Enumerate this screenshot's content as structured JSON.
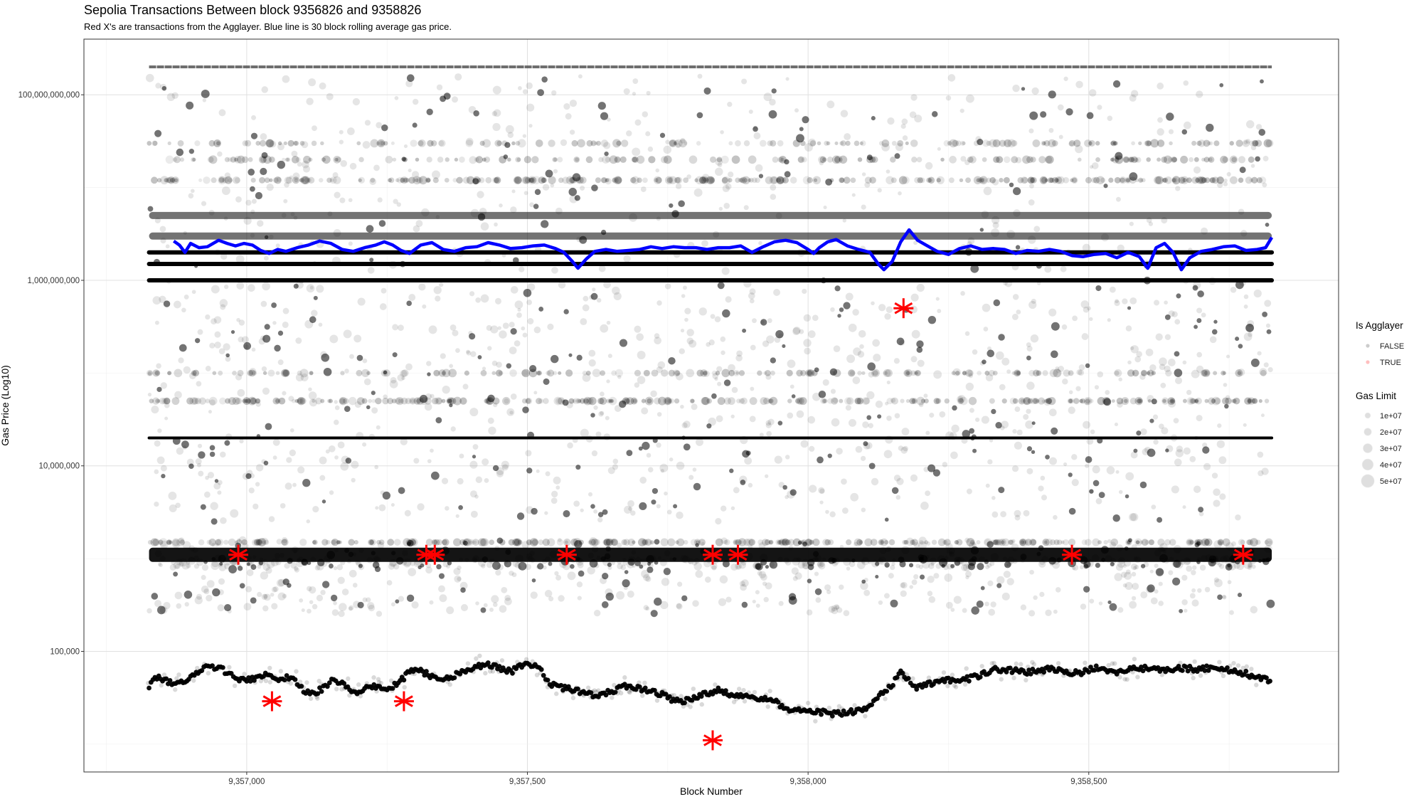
{
  "chart_data": {
    "type": "scatter",
    "title": "Sepolia Transactions Between block 9356826 and 9358826",
    "subtitle": "Red X's are transactions from the Agglayer. Blue line is 30 block rolling average gas price.",
    "xlabel": "Block Number",
    "ylabel": "Gas Price (Log10)",
    "xlim": [
      9356710,
      9358945
    ],
    "ylim_log10": [
      3.7,
      11.6
    ],
    "y_scale": "log10",
    "grid": true,
    "x_ticks": [
      {
        "value": 9357000,
        "label": "9,357,000"
      },
      {
        "value": 9357500,
        "label": "9,357,500"
      },
      {
        "value": 9358000,
        "label": "9,358,000"
      },
      {
        "value": 9358500,
        "label": "9,358,500"
      }
    ],
    "y_ticks": [
      {
        "value": 100000,
        "label": "100,000"
      },
      {
        "value": 10000000,
        "label": "10,000,000"
      },
      {
        "value": 1000000000,
        "label": "1,000,000,000"
      },
      {
        "value": 100000000000,
        "label": "100,000,000,000"
      }
    ],
    "legend_position": "right",
    "legend_agglayer": {
      "title": "Is Agglayer",
      "entries": [
        {
          "label": "FALSE",
          "color": "#000000"
        },
        {
          "label": "TRUE",
          "color": "#ff0000"
        }
      ]
    },
    "legend_gaslimit": {
      "title": "Gas Limit",
      "entries": [
        {
          "label": "1e+07",
          "value": 10000000
        },
        {
          "label": "2e+07",
          "value": 20000000
        },
        {
          "label": "3e+07",
          "value": 30000000
        },
        {
          "label": "4e+07",
          "value": 40000000
        },
        {
          "label": "5e+07",
          "value": 50000000
        }
      ]
    },
    "block_range": [
      9356826,
      9358826
    ],
    "horizontal_bands": [
      {
        "gas_price": 200000000000,
        "density": "medium",
        "kind": "dashed"
      },
      {
        "gas_price": 30000000000,
        "density": "sparse",
        "kind": "dotted"
      },
      {
        "gas_price": 20000000000,
        "density": "sparse",
        "kind": "dotted"
      },
      {
        "gas_price": 12000000000,
        "density": "medium",
        "kind": "dotted"
      },
      {
        "gas_price": 5000000000,
        "density": "high",
        "kind": "band"
      },
      {
        "gas_price": 3000000000,
        "density": "high",
        "kind": "band"
      },
      {
        "gas_price": 2000000000,
        "density": "high",
        "kind": "line"
      },
      {
        "gas_price": 1500000000,
        "density": "high",
        "kind": "line"
      },
      {
        "gas_price": 1000000000,
        "density": "high",
        "kind": "line"
      },
      {
        "gas_price": 100000000,
        "density": "sparse",
        "kind": "dotted"
      },
      {
        "gas_price": 50000000,
        "density": "medium",
        "kind": "dotted"
      },
      {
        "gas_price": 20000000,
        "density": "high",
        "kind": "line"
      },
      {
        "gas_price": 1500000,
        "density": "medium",
        "kind": "dotted"
      },
      {
        "gas_price": 1100000,
        "density": "very-high",
        "kind": "band"
      }
    ],
    "base_fee_curve": [
      [
        9356826,
        42000
      ],
      [
        9356840,
        52000
      ],
      [
        9356860,
        47000
      ],
      [
        9356880,
        44000
      ],
      [
        9356900,
        52000
      ],
      [
        9356920,
        62000
      ],
      [
        9356935,
        70000
      ],
      [
        9356950,
        66000
      ],
      [
        9356965,
        60000
      ],
      [
        9356980,
        50000
      ],
      [
        9357000,
        48000
      ],
      [
        9357020,
        54000
      ],
      [
        9357040,
        55000
      ],
      [
        9357060,
        50000
      ],
      [
        9357075,
        53000
      ],
      [
        9357090,
        45000
      ],
      [
        9357105,
        37000
      ],
      [
        9357120,
        35000
      ],
      [
        9357140,
        42000
      ],
      [
        9357155,
        49000
      ],
      [
        9357170,
        46000
      ],
      [
        9357190,
        35000
      ],
      [
        9357210,
        40000
      ],
      [
        9357230,
        42000
      ],
      [
        9357250,
        39000
      ],
      [
        9357270,
        45000
      ],
      [
        9357290,
        60000
      ],
      [
        9357310,
        63000
      ],
      [
        9357330,
        52000
      ],
      [
        9357350,
        49000
      ],
      [
        9357370,
        55000
      ],
      [
        9357390,
        62000
      ],
      [
        9357410,
        68000
      ],
      [
        9357430,
        72000
      ],
      [
        9357450,
        66000
      ],
      [
        9357470,
        60000
      ],
      [
        9357490,
        70000
      ],
      [
        9357510,
        73000
      ],
      [
        9357525,
        60000
      ],
      [
        9357540,
        44000
      ],
      [
        9357560,
        41000
      ],
      [
        9357580,
        38000
      ],
      [
        9357600,
        37000
      ],
      [
        9357620,
        33000
      ],
      [
        9357640,
        35000
      ],
      [
        9357660,
        39000
      ],
      [
        9357680,
        43000
      ],
      [
        9357700,
        40000
      ],
      [
        9357720,
        38000
      ],
      [
        9357740,
        34000
      ],
      [
        9357760,
        30000
      ],
      [
        9357780,
        29000
      ],
      [
        9357800,
        32000
      ],
      [
        9357820,
        35000
      ],
      [
        9357840,
        38000
      ],
      [
        9357860,
        35000
      ],
      [
        9357880,
        33000
      ],
      [
        9357900,
        33000
      ],
      [
        9357920,
        31000
      ],
      [
        9357940,
        29000
      ],
      [
        9357960,
        23000
      ],
      [
        9357980,
        23500
      ],
      [
        9358000,
        22000
      ],
      [
        9358020,
        22500
      ],
      [
        9358040,
        21000
      ],
      [
        9358060,
        21500
      ],
      [
        9358080,
        22500
      ],
      [
        9358100,
        24000
      ],
      [
        9358120,
        30000
      ],
      [
        9358140,
        38000
      ],
      [
        9358155,
        48000
      ],
      [
        9358165,
        58000
      ],
      [
        9358175,
        52000
      ],
      [
        9358190,
        40000
      ],
      [
        9358210,
        44000
      ],
      [
        9358230,
        46000
      ],
      [
        9358250,
        50000
      ],
      [
        9358270,
        47000
      ],
      [
        9358290,
        52000
      ],
      [
        9358310,
        56000
      ],
      [
        9358330,
        63000
      ],
      [
        9358350,
        64000
      ],
      [
        9358370,
        62000
      ],
      [
        9358390,
        60000
      ],
      [
        9358410,
        62000
      ],
      [
        9358430,
        65000
      ],
      [
        9358450,
        62000
      ],
      [
        9358470,
        58000
      ],
      [
        9358490,
        60000
      ],
      [
        9358510,
        66000
      ],
      [
        9358530,
        62000
      ],
      [
        9358550,
        60000
      ],
      [
        9358570,
        65000
      ],
      [
        9358590,
        66000
      ],
      [
        9358610,
        64000
      ],
      [
        9358630,
        63000
      ],
      [
        9358650,
        65000
      ],
      [
        9358670,
        66000
      ],
      [
        9358690,
        64000
      ],
      [
        9358710,
        66000
      ],
      [
        9358730,
        65000
      ],
      [
        9358750,
        63000
      ],
      [
        9358770,
        60000
      ],
      [
        9358790,
        55000
      ],
      [
        9358810,
        50000
      ],
      [
        9358826,
        49000
      ]
    ],
    "rolling_avg_gas_price": [
      [
        9356870,
        2650000000
      ],
      [
        9356880,
        2400000000
      ],
      [
        9356890,
        2000000000
      ],
      [
        9356900,
        2500000000
      ],
      [
        9356915,
        2250000000
      ],
      [
        9356930,
        2300000000
      ],
      [
        9356950,
        2700000000
      ],
      [
        9356965,
        2500000000
      ],
      [
        9356980,
        2350000000
      ],
      [
        9356995,
        2500000000
      ],
      [
        9357010,
        2400000000
      ],
      [
        9357025,
        2100000000
      ],
      [
        9357040,
        1950000000
      ],
      [
        9357055,
        2150000000
      ],
      [
        9357070,
        2050000000
      ],
      [
        9357090,
        2250000000
      ],
      [
        9357110,
        2400000000
      ],
      [
        9357130,
        2650000000
      ],
      [
        9357150,
        2500000000
      ],
      [
        9357170,
        2150000000
      ],
      [
        9357190,
        2050000000
      ],
      [
        9357210,
        2250000000
      ],
      [
        9357230,
        2400000000
      ],
      [
        9357245,
        2600000000
      ],
      [
        9357260,
        2400000000
      ],
      [
        9357275,
        2100000000
      ],
      [
        9357290,
        1950000000
      ],
      [
        9357310,
        2400000000
      ],
      [
        9357330,
        2550000000
      ],
      [
        9357350,
        2150000000
      ],
      [
        9357370,
        2050000000
      ],
      [
        9357390,
        2250000000
      ],
      [
        9357410,
        2300000000
      ],
      [
        9357430,
        2550000000
      ],
      [
        9357450,
        2400000000
      ],
      [
        9357470,
        2200000000
      ],
      [
        9357490,
        2250000000
      ],
      [
        9357510,
        2350000000
      ],
      [
        9357530,
        2400000000
      ],
      [
        9357550,
        2200000000
      ],
      [
        9357565,
        2000000000
      ],
      [
        9357580,
        1600000000
      ],
      [
        9357590,
        1350000000
      ],
      [
        9357605,
        1700000000
      ],
      [
        9357620,
        2050000000
      ],
      [
        9357640,
        2150000000
      ],
      [
        9357660,
        2050000000
      ],
      [
        9357680,
        2100000000
      ],
      [
        9357700,
        2150000000
      ],
      [
        9357720,
        2300000000
      ],
      [
        9357740,
        2200000000
      ],
      [
        9357760,
        2300000000
      ],
      [
        9357780,
        2250000000
      ],
      [
        9357800,
        2250000000
      ],
      [
        9357820,
        2150000000
      ],
      [
        9357840,
        2250000000
      ],
      [
        9357860,
        2250000000
      ],
      [
        9357880,
        2350000000
      ],
      [
        9357900,
        2000000000
      ],
      [
        9357920,
        2300000000
      ],
      [
        9357940,
        2600000000
      ],
      [
        9357960,
        2700000000
      ],
      [
        9357980,
        2550000000
      ],
      [
        9358000,
        2150000000
      ],
      [
        9358010,
        1950000000
      ],
      [
        9358020,
        2250000000
      ],
      [
        9358035,
        2600000000
      ],
      [
        9358050,
        2750000000
      ],
      [
        9358070,
        2350000000
      ],
      [
        9358090,
        2150000000
      ],
      [
        9358110,
        2000000000
      ],
      [
        9358125,
        1500000000
      ],
      [
        9358135,
        1300000000
      ],
      [
        9358150,
        1600000000
      ],
      [
        9358165,
        2600000000
      ],
      [
        9358180,
        3500000000
      ],
      [
        9358195,
        2700000000
      ],
      [
        9358210,
        2400000000
      ],
      [
        9358230,
        2050000000
      ],
      [
        9358250,
        1900000000
      ],
      [
        9358270,
        2200000000
      ],
      [
        9358290,
        2350000000
      ],
      [
        9358310,
        2150000000
      ],
      [
        9358330,
        2200000000
      ],
      [
        9358350,
        2150000000
      ],
      [
        9358370,
        1950000000
      ],
      [
        9358390,
        2100000000
      ],
      [
        9358410,
        2050000000
      ],
      [
        9358430,
        2150000000
      ],
      [
        9358450,
        2050000000
      ],
      [
        9358470,
        1850000000
      ],
      [
        9358490,
        1800000000
      ],
      [
        9358510,
        1900000000
      ],
      [
        9358530,
        1950000000
      ],
      [
        9358550,
        1750000000
      ],
      [
        9358570,
        2000000000
      ],
      [
        9358590,
        1800000000
      ],
      [
        9358605,
        1350000000
      ],
      [
        9358620,
        2250000000
      ],
      [
        9358635,
        2500000000
      ],
      [
        9358650,
        2000000000
      ],
      [
        9358665,
        1300000000
      ],
      [
        9358680,
        1750000000
      ],
      [
        9358700,
        2050000000
      ],
      [
        9358720,
        2150000000
      ],
      [
        9358740,
        2300000000
      ],
      [
        9358760,
        2350000000
      ],
      [
        9358780,
        2100000000
      ],
      [
        9358800,
        2150000000
      ],
      [
        9358815,
        2250000000
      ],
      [
        9358826,
        2900000000
      ]
    ],
    "agglayer_transactions": [
      {
        "block": 9356985,
        "gas_price": 1100000
      },
      {
        "block": 9357045,
        "gas_price": 29000
      },
      {
        "block": 9357280,
        "gas_price": 29000
      },
      {
        "block": 9357320,
        "gas_price": 1100000
      },
      {
        "block": 9357335,
        "gas_price": 1100000
      },
      {
        "block": 9357570,
        "gas_price": 1100000
      },
      {
        "block": 9357830,
        "gas_price": 1100000
      },
      {
        "block": 9357875,
        "gas_price": 1100000
      },
      {
        "block": 9357830,
        "gas_price": 11000
      },
      {
        "block": 9358170,
        "gas_price": 500000000
      },
      {
        "block": 9358470,
        "gas_price": 1100000
      },
      {
        "block": 9358775,
        "gas_price": 1100000
      }
    ],
    "marker_sizes": {
      "point": 8,
      "agglayer": 14
    }
  }
}
